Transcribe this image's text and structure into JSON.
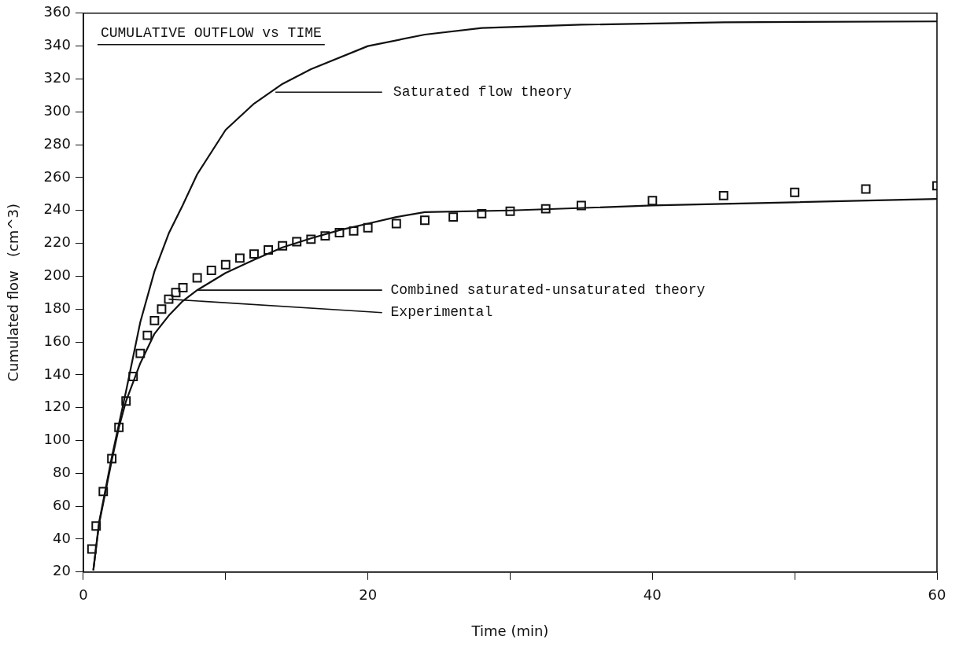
{
  "chart_data": {
    "type": "line",
    "title": "CUMULATIVE OUTFLOW vs TIME",
    "xlabel": "Time (min)",
    "ylabel": "Cumulated flow   (cm^3)",
    "xlim": [
      0,
      60
    ],
    "xticks": [
      0,
      {
        "value": 10,
        "label": null
      },
      20,
      {
        "value": 30,
        "label": null
      },
      40,
      {
        "value": 50,
        "label": null
      },
      60
    ],
    "ylim": [
      20,
      360
    ],
    "yticks": [
      20,
      40,
      60,
      80,
      100,
      120,
      140,
      160,
      180,
      200,
      220,
      240,
      260,
      280,
      300,
      320,
      340,
      360
    ],
    "grid": false,
    "legend": false,
    "series": [
      {
        "type": "line",
        "color": "#111111",
        "x": [
          0.7,
          1.1,
          2,
          3,
          4,
          5,
          6,
          7,
          8,
          10,
          12,
          14,
          16,
          20,
          24,
          28,
          35,
          45,
          60
        ],
        "values": [
          21,
          50,
          90,
          130,
          172,
          203,
          226,
          243.5,
          262,
          289,
          305,
          317,
          326,
          340,
          347,
          351,
          353,
          354.5,
          355
        ]
      },
      {
        "type": "line",
        "color": "#111111",
        "x": [
          0.7,
          1.1,
          2,
          2.5,
          3,
          4,
          5,
          6,
          7,
          8,
          10,
          12,
          14,
          16,
          18,
          20,
          22,
          24,
          30,
          40,
          50,
          60
        ],
        "values": [
          21,
          49,
          88,
          108,
          124,
          147,
          165,
          176,
          185,
          191.5,
          202,
          210,
          217.5,
          223,
          228,
          232,
          236,
          239,
          240,
          243,
          245,
          247
        ]
      },
      {
        "type": "scatter",
        "color": "#111111",
        "marker": "square",
        "x": [
          0.6,
          0.9,
          1.4,
          2,
          2.5,
          3,
          3.5,
          4,
          4.5,
          5,
          5.5,
          6,
          6.5,
          7,
          8,
          9,
          10,
          11,
          12,
          13,
          14,
          15,
          16,
          17,
          18,
          19,
          20,
          22,
          24,
          26,
          28,
          30,
          32.5,
          35,
          40,
          45,
          50,
          55,
          60
        ],
        "values": [
          34,
          48,
          69,
          89,
          108,
          124,
          139,
          153,
          164,
          173,
          180,
          186,
          190,
          193,
          199,
          203.5,
          207,
          211,
          213.5,
          216,
          218.5,
          221,
          222.5,
          224.5,
          226.5,
          227.5,
          229.5,
          232,
          234,
          236,
          238,
          239.5,
          241,
          243,
          246,
          249,
          251,
          253,
          255
        ]
      }
    ],
    "annotations": [
      {
        "text": "Saturated flow theory",
        "x": 13.5,
        "y": 312
      },
      {
        "text": "Combined saturated-unsaturated theory",
        "x": 8,
        "y": 191.5
      },
      {
        "text": "Experimental",
        "x": 6,
        "y": 186
      }
    ]
  }
}
